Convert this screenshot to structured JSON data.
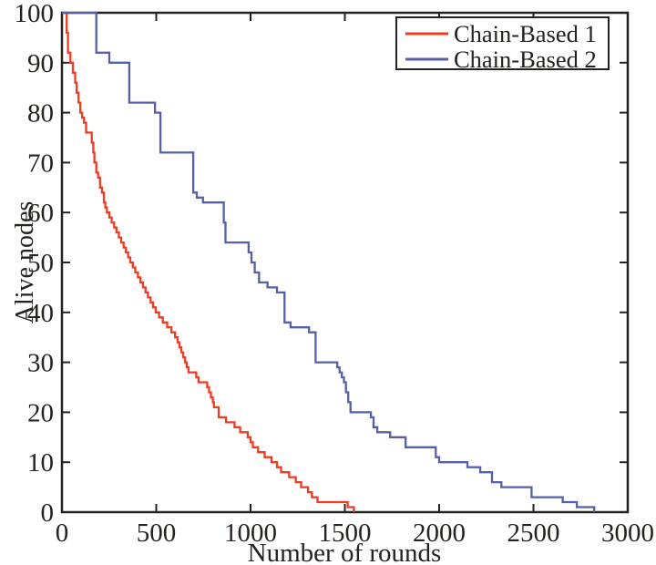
{
  "figure": {
    "background": "#ffffff",
    "axis_color": "#272220",
    "text_color": "#272220"
  },
  "chart_data": {
    "type": "line",
    "line_style": "step-after",
    "title": "",
    "xlabel": "Number of rounds",
    "ylabel": "Alive nodes",
    "xlim": [
      0,
      3000
    ],
    "ylim": [
      0,
      100
    ],
    "xticks": [
      0,
      500,
      1000,
      1500,
      2000,
      2500,
      3000
    ],
    "yticks": [
      0,
      10,
      20,
      30,
      40,
      50,
      60,
      70,
      80,
      90,
      100
    ],
    "grid": false,
    "legend_position": "top-right",
    "legend_border_color": "#272220",
    "legend_background": "#ffffff",
    "series": [
      {
        "name": "Chain-Based 1",
        "color": "#ee3b22",
        "points": [
          [
            0,
            100
          ],
          [
            25,
            96
          ],
          [
            32,
            92
          ],
          [
            45,
            90
          ],
          [
            58,
            88
          ],
          [
            70,
            86
          ],
          [
            78,
            84
          ],
          [
            88,
            82
          ],
          [
            97,
            80
          ],
          [
            107,
            79
          ],
          [
            117,
            78
          ],
          [
            128,
            76
          ],
          [
            158,
            74
          ],
          [
            166,
            72
          ],
          [
            172,
            70
          ],
          [
            182,
            68
          ],
          [
            192,
            67
          ],
          [
            202,
            65
          ],
          [
            212,
            64
          ],
          [
            222,
            62
          ],
          [
            230,
            61
          ],
          [
            238,
            60
          ],
          [
            251,
            59
          ],
          [
            264,
            58
          ],
          [
            277,
            57
          ],
          [
            289,
            56
          ],
          [
            302,
            55
          ],
          [
            314,
            54
          ],
          [
            327,
            53
          ],
          [
            339,
            52
          ],
          [
            351,
            51
          ],
          [
            362,
            50
          ],
          [
            376,
            49
          ],
          [
            389,
            48
          ],
          [
            403,
            47
          ],
          [
            416,
            46
          ],
          [
            430,
            45
          ],
          [
            443,
            44
          ],
          [
            456,
            43
          ],
          [
            470,
            42
          ],
          [
            483,
            41
          ],
          [
            497,
            40
          ],
          [
            515,
            39
          ],
          [
            535,
            38
          ],
          [
            558,
            37
          ],
          [
            580,
            36
          ],
          [
            600,
            35
          ],
          [
            613,
            34
          ],
          [
            623,
            33
          ],
          [
            633,
            32
          ],
          [
            643,
            31
          ],
          [
            653,
            30
          ],
          [
            662,
            29
          ],
          [
            671,
            28
          ],
          [
            712,
            27
          ],
          [
            724,
            26
          ],
          [
            770,
            25
          ],
          [
            780,
            24
          ],
          [
            790,
            23
          ],
          [
            800,
            22
          ],
          [
            806,
            21
          ],
          [
            831,
            19
          ],
          [
            870,
            18
          ],
          [
            915,
            17
          ],
          [
            945,
            16
          ],
          [
            985,
            15
          ],
          [
            1000,
            14
          ],
          [
            1012,
            13
          ],
          [
            1040,
            12
          ],
          [
            1075,
            11
          ],
          [
            1111,
            10
          ],
          [
            1140,
            9
          ],
          [
            1162,
            8
          ],
          [
            1205,
            7
          ],
          [
            1240,
            6
          ],
          [
            1268,
            5
          ],
          [
            1305,
            4
          ],
          [
            1325,
            3
          ],
          [
            1355,
            2
          ],
          [
            1515,
            1
          ],
          [
            1548,
            0
          ]
        ]
      },
      {
        "name": "Chain-Based 2",
        "color": "#5560a8",
        "points": [
          [
            0,
            100
          ],
          [
            182,
            92
          ],
          [
            251,
            90
          ],
          [
            357,
            82
          ],
          [
            493,
            80
          ],
          [
            522,
            72
          ],
          [
            696,
            64
          ],
          [
            715,
            63
          ],
          [
            748,
            62
          ],
          [
            858,
            58
          ],
          [
            867,
            54
          ],
          [
            990,
            52
          ],
          [
            1005,
            50
          ],
          [
            1022,
            48
          ],
          [
            1045,
            46
          ],
          [
            1090,
            45
          ],
          [
            1140,
            44
          ],
          [
            1180,
            38
          ],
          [
            1212,
            37
          ],
          [
            1310,
            36
          ],
          [
            1345,
            30
          ],
          [
            1460,
            29
          ],
          [
            1472,
            28
          ],
          [
            1484,
            27
          ],
          [
            1495,
            26
          ],
          [
            1506,
            24
          ],
          [
            1518,
            22
          ],
          [
            1530,
            20
          ],
          [
            1638,
            19
          ],
          [
            1652,
            17
          ],
          [
            1672,
            16
          ],
          [
            1740,
            15
          ],
          [
            1822,
            13
          ],
          [
            1982,
            11
          ],
          [
            2000,
            10
          ],
          [
            2150,
            9
          ],
          [
            2218,
            8
          ],
          [
            2280,
            6
          ],
          [
            2330,
            5
          ],
          [
            2490,
            3
          ],
          [
            2655,
            2
          ],
          [
            2730,
            1
          ],
          [
            2822,
            0
          ]
        ]
      }
    ]
  }
}
